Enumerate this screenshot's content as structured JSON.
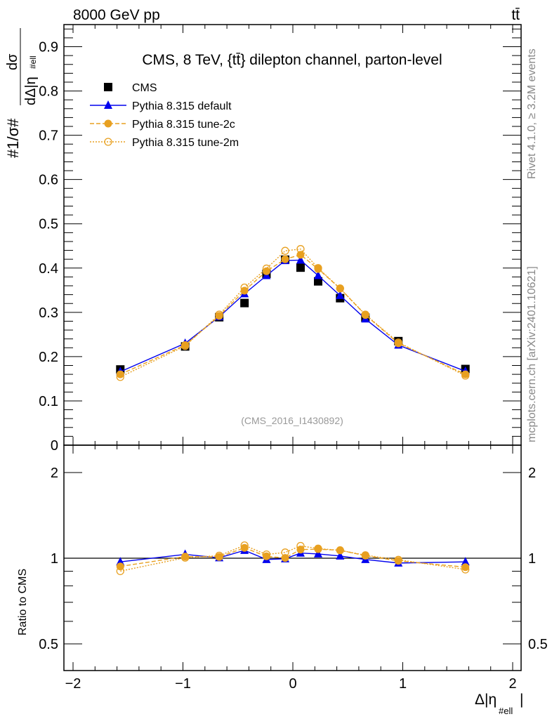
{
  "chart_data": {
    "type": "line",
    "top_left_label": "8000 GeV pp",
    "top_right_label": "tt̄",
    "title": "CMS, 8 TeV, {tt̄} dilepton channel, parton-level",
    "ylabel": "#1/σ# dσ/dΔ|η_#ell|",
    "ylabel_parts": {
      "num": "dσ",
      "den": "dΔ|η",
      "sub": "#ell",
      "pre": "#",
      "frac_num": "1",
      "frac_den": "σ",
      "post": "#"
    },
    "xlabel": "Δ|η",
    "xlabel_sub": "#ell",
    "ratio_ylabel": "Ratio to CMS",
    "analysis_id": "(CMS_2016_I1430892)",
    "side_label_top": "Rivet 4.1.0, ≥ 3.2M events",
    "side_label_bottom": "mcplots.cern.ch [arXiv:2401.10621]",
    "xlim": [
      -2,
      2
    ],
    "ylim": [
      0,
      0.95
    ],
    "ratio_ylim": [
      0.4,
      2.5
    ],
    "xticks": [
      "−2",
      "−1",
      "0",
      "1",
      "2"
    ],
    "yticks": [
      "0",
      "0.1",
      "0.2",
      "0.3",
      "0.4",
      "0.5",
      "0.6",
      "0.7",
      "0.8",
      "0.9"
    ],
    "ratio_yticks": [
      "0.5",
      "1",
      "2"
    ],
    "legend_position": "top-left",
    "x": [
      -1.57,
      -0.98,
      -0.67,
      -0.44,
      -0.24,
      -0.07,
      0.07,
      0.23,
      0.43,
      0.66,
      0.96,
      1.57
    ],
    "series": [
      {
        "name": "CMS",
        "color": "#000000",
        "marker": "square",
        "values": [
          0.171,
          0.223,
          0.289,
          0.321,
          0.387,
          0.419,
          0.401,
          0.37,
          0.332,
          0.288,
          0.235,
          0.172
        ]
      },
      {
        "name": "Pythia 8.315 default",
        "color": "#0000ee",
        "marker": "triangle",
        "line": "solid",
        "values": [
          0.166,
          0.23,
          0.29,
          0.342,
          0.383,
          0.417,
          0.418,
          0.383,
          0.338,
          0.285,
          0.226,
          0.167
        ]
      },
      {
        "name": "Pythia 8.315 tune-2c",
        "color": "#e8a020",
        "marker": "circle",
        "line": "dashed",
        "values": [
          0.16,
          0.226,
          0.292,
          0.349,
          0.393,
          0.42,
          0.43,
          0.398,
          0.354,
          0.294,
          0.23,
          0.16
        ]
      },
      {
        "name": "Pythia 8.315 tune-2m",
        "color": "#e8a020",
        "marker": "open-circle",
        "line": "dotted",
        "values": [
          0.154,
          0.224,
          0.295,
          0.356,
          0.399,
          0.439,
          0.443,
          0.4,
          0.354,
          0.295,
          0.232,
          0.157
        ]
      }
    ]
  }
}
